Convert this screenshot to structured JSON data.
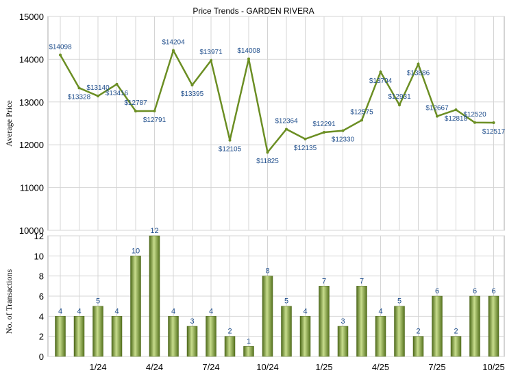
{
  "chart_data": [
    {
      "type": "line",
      "title": "Price Trends - GARDEN RIVERA",
      "ylabel": "Average Price",
      "xlabel": "",
      "ylim": [
        10000,
        15000
      ],
      "yticks": [
        10000,
        11000,
        12000,
        13000,
        14000,
        15000
      ],
      "grid": true,
      "color": "#6b8e23",
      "point_label_prefix": "$",
      "x": [
        "Nov 2023",
        "Dec 2023",
        "Jan 2024",
        "Feb 2024",
        "Mar 2024",
        "Apr 2024",
        "May 2024",
        "Jun 2024",
        "Jul 2024",
        "Aug 2024",
        "Sep 2024",
        "Oct 2024",
        "Nov 2024",
        "Dec 2024",
        "Jan 2025",
        "Feb 2025",
        "Mar 2025",
        "Apr 2025",
        "May 2025",
        "Jun 2025",
        "Jul 2025",
        "Aug 2025",
        "Sep 2025",
        "Oct 2025"
      ],
      "series": [
        {
          "values": [
            14098,
            13328,
            13140,
            13416,
            12787,
            12791,
            14204,
            13395,
            13971,
            12105,
            14008,
            11825,
            12364,
            12135,
            12291,
            12330,
            12575,
            13704,
            12931,
            13886,
            12667,
            12818,
            12520,
            12517
          ]
        }
      ]
    },
    {
      "type": "bar",
      "ylabel": "No. of Transactions",
      "xlabel": "",
      "ylim": [
        0,
        12
      ],
      "yticks": [
        0,
        2,
        4,
        6,
        8,
        10,
        12
      ],
      "grid": true,
      "color": "#7a9a35",
      "x": [
        "Nov 2023",
        "Dec 2023",
        "Jan 2024",
        "Feb 2024",
        "Mar 2024",
        "Apr 2024",
        "May 2024",
        "Jun 2024",
        "Jul 2024",
        "Aug 2024",
        "Sep 2024",
        "Oct 2024",
        "Nov 2024",
        "Dec 2024",
        "Jan 2025",
        "Feb 2025",
        "Mar 2025",
        "Apr 2025",
        "May 2025",
        "Jun 2025",
        "Jul 2025",
        "Aug 2025",
        "Sep 2025",
        "Oct 2025"
      ],
      "values": [
        4,
        4,
        5,
        4,
        10,
        12,
        4,
        3,
        4,
        2,
        1,
        8,
        5,
        4,
        7,
        3,
        7,
        4,
        5,
        2,
        6,
        2,
        6,
        6
      ],
      "xtick_labels": [
        {
          "index": 2,
          "label": "1/24"
        },
        {
          "index": 5,
          "label": "4/24"
        },
        {
          "index": 8,
          "label": "7/24"
        },
        {
          "index": 11,
          "label": "10/24"
        },
        {
          "index": 14,
          "label": "1/25"
        },
        {
          "index": 17,
          "label": "4/25"
        },
        {
          "index": 20,
          "label": "7/25"
        },
        {
          "index": 23,
          "label": "10/25"
        }
      ]
    }
  ]
}
